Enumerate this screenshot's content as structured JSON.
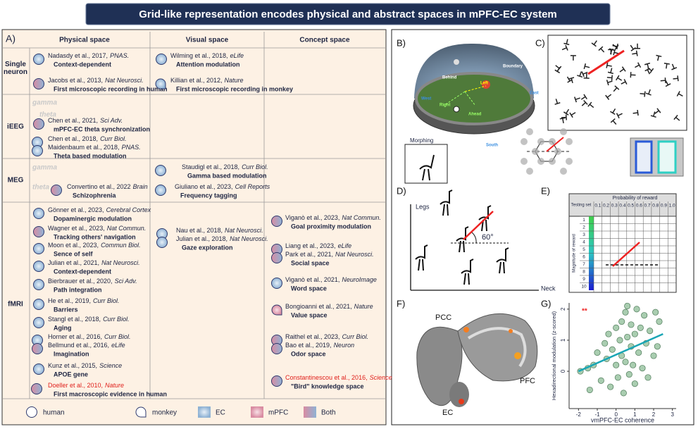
{
  "title": "Grid-like representation encodes physical and abstract spaces  in mPFC-EC system",
  "panel_a": {
    "label": "A)",
    "columns": [
      "Physical space",
      "Visual space",
      "Concept space"
    ],
    "rows": [
      "Single neuron",
      "iEEG",
      "MEG",
      "fMRI"
    ],
    "bands": [
      "gamma",
      "theta",
      "gamma",
      "theta"
    ],
    "entries": [
      {
        "cites": [
          {
            "authors": "Nadasdy et al., 2017,",
            "journal": "PNAS."
          }
        ],
        "label": "Context-dependent",
        "icons": [
          {
            "area": "EC",
            "species": "human"
          }
        ]
      },
      {
        "cites": [
          {
            "authors": "Jacobs et al., 2013,",
            "journal": "Nat Neurosci."
          }
        ],
        "label": "First microscopic recording in human",
        "icons": [
          {
            "area": "Both",
            "species": "human"
          }
        ]
      },
      {
        "cites": [
          {
            "authors": "Chen et al., 2021,",
            "journal": "Sci Adv."
          }
        ],
        "label": "mPFC-EC theta synchronization",
        "icons": [
          {
            "area": "Both",
            "species": "human"
          }
        ]
      },
      {
        "cites": [
          {
            "authors": "Chen et al., 2018,",
            "journal": "Curr Biol."
          },
          {
            "authors": "Maidenbaum et al., 2018,",
            "journal": "PNAS."
          }
        ],
        "label": "Theta based modulation",
        "icons": [
          {
            "area": "EC",
            "species": "human"
          },
          {
            "area": "EC",
            "species": "human"
          }
        ]
      },
      {
        "cites": [
          {
            "authors": "Convertino et al., 2022",
            "journal": "Brain"
          }
        ],
        "label": "Schizophrenia",
        "icons": [
          {
            "area": "Both",
            "species": "human"
          }
        ]
      },
      {
        "cites": [
          {
            "authors": "Wilming et al., 2018,",
            "journal": "eLife"
          }
        ],
        "label": "Attention modulation",
        "icons": [
          {
            "area": "EC",
            "species": "human"
          }
        ]
      },
      {
        "cites": [
          {
            "authors": "Killian et al., 2012,",
            "journal": "Nature"
          }
        ],
        "label": "First microscopic recording in monkey",
        "icons": [
          {
            "area": "EC",
            "species": "monkey"
          }
        ]
      },
      {
        "cites": [
          {
            "authors": "Staudigl et al., 2018,",
            "journal": "Curr Biol."
          }
        ],
        "label": "Gamma based modulation",
        "icons": [
          {
            "area": "EC",
            "species": "human"
          }
        ]
      },
      {
        "cites": [
          {
            "authors": "Giuliano et al., 2023,",
            "journal": "Cell Reports"
          }
        ],
        "label": "Frequency tagging",
        "icons": [
          {
            "area": "EC",
            "species": "human"
          }
        ]
      },
      {
        "cites": [
          {
            "authors": "Gönner et al., 2023,",
            "journal": "Cerebral Cortex"
          }
        ],
        "label": "Dopaminergic modulation",
        "icons": [
          {
            "area": "EC",
            "species": "human"
          }
        ]
      },
      {
        "cites": [
          {
            "authors": "Wagner et al., 2023,",
            "journal": "Nat Commun."
          }
        ],
        "label": "Tracking others' navigation",
        "icons": [
          {
            "area": "Both",
            "species": "human"
          }
        ]
      },
      {
        "cites": [
          {
            "authors": "Moon et al., 2023,",
            "journal": "Commun Biol."
          }
        ],
        "label": "Sence of self",
        "icons": [
          {
            "area": "EC",
            "species": "human"
          }
        ]
      },
      {
        "cites": [
          {
            "authors": "Julian et al., 2021,",
            "journal": "Nat Neurosci."
          }
        ],
        "label": "Context-dependent",
        "icons": [
          {
            "area": "EC",
            "species": "human"
          }
        ]
      },
      {
        "cites": [
          {
            "authors": "Bierbrauer et al., 2020,",
            "journal": "Sci Adv."
          }
        ],
        "label": "Path integration",
        "icons": [
          {
            "area": "EC",
            "species": "human"
          }
        ]
      },
      {
        "cites": [
          {
            "authors": "He et al., 2019,",
            "journal": "Curr Biol."
          }
        ],
        "label": "Barriers",
        "icons": [
          {
            "area": "EC",
            "species": "human"
          }
        ]
      },
      {
        "cites": [
          {
            "authors": "Stangl et al., 2018,",
            "journal": "Curr Biol."
          }
        ],
        "label": "Aging",
        "icons": [
          {
            "area": "EC",
            "species": "human"
          }
        ]
      },
      {
        "cites": [
          {
            "authors": "Horner et al., 2016,",
            "journal": "Curr Biol."
          },
          {
            "authors": "Bellmund et al., 2016,",
            "journal": "eLife"
          }
        ],
        "label": "Imagination",
        "icons": [
          {
            "area": "EC",
            "species": "human"
          },
          {
            "area": "Both",
            "species": "human"
          }
        ]
      },
      {
        "cites": [
          {
            "authors": "Kunz et al., 2015,",
            "journal": "Science"
          }
        ],
        "label": "APOE gene",
        "icons": [
          {
            "area": "EC",
            "species": "human"
          }
        ]
      },
      {
        "cites": [
          {
            "authors": "Doeller et al., 2010,",
            "journal": "Nature"
          }
        ],
        "label": "First macroscopic evidence in human",
        "icons": [
          {
            "area": "Both",
            "species": "human"
          }
        ],
        "color": "#e0201b"
      },
      {
        "cites": [
          {
            "authors": "Nau et al., 2018,",
            "journal": "Nat Neurosci."
          },
          {
            "authors": "Julian et al., 2018,",
            "journal": "Nat Neurosci."
          }
        ],
        "label": "Gaze exploration",
        "icons": [
          {
            "area": "EC",
            "species": "human"
          },
          {
            "area": "EC",
            "species": "human"
          }
        ]
      },
      {
        "cites": [
          {
            "authors": "Viganò et al., 2023,",
            "journal": "Nat Commun."
          }
        ],
        "label": "Goal proximity modulation",
        "icons": [
          {
            "area": "Both",
            "species": "human"
          }
        ]
      },
      {
        "cites": [
          {
            "authors": "Liang et al., 2023,",
            "journal": "eLife"
          },
          {
            "authors": "Park et al., 2021,",
            "journal": "Nat Neurosci."
          }
        ],
        "label": "Social space",
        "icons": [
          {
            "area": "Both",
            "species": "human"
          },
          {
            "area": "Both",
            "species": "human"
          }
        ]
      },
      {
        "cites": [
          {
            "authors": "Viganò et al., 2021,",
            "journal": "NeuroImage"
          }
        ],
        "label": "Word space",
        "icons": [
          {
            "area": "EC",
            "species": "human"
          }
        ]
      },
      {
        "cites": [
          {
            "authors": "Bongioanni et al., 2021,",
            "journal": "Nature"
          }
        ],
        "label": "Value space",
        "icons": [
          {
            "area": "mPFC",
            "species": "monkey"
          }
        ]
      },
      {
        "cites": [
          {
            "authors": "Raithel et al., 2023,",
            "journal": "Curr Biol."
          },
          {
            "authors": "Bao et al., 2019,",
            "journal": "Neuron"
          }
        ],
        "label": "Odor space",
        "icons": [
          {
            "area": "Both",
            "species": "human"
          },
          {
            "area": "Both",
            "species": "human"
          }
        ]
      },
      {
        "cites": [
          {
            "authors": "Constantinescou et al., 2016,",
            "journal": "Science"
          }
        ],
        "label": "\"Bird\"  knowledge space",
        "icons": [
          {
            "area": "Both",
            "species": "human"
          }
        ],
        "color": "#e0201b"
      }
    ],
    "legend": [
      {
        "label": "human",
        "area": "none",
        "species": "human"
      },
      {
        "label": "monkey",
        "area": "none",
        "species": "monkey"
      },
      {
        "label": "EC",
        "area": "EC",
        "species": "square"
      },
      {
        "label": "mPFC",
        "area": "mPFC",
        "species": "square"
      },
      {
        "label": "Both",
        "area": "Both",
        "species": "square"
      }
    ]
  },
  "panel_b": {
    "label": "B)",
    "labels": [
      "Behind",
      "Left",
      "Right",
      "Ahead",
      "Boundary",
      "West",
      "East",
      "South"
    ],
    "morphing": "Morphing"
  },
  "panel_c": {
    "label": "C)"
  },
  "panel_d": {
    "label": "D)",
    "y_label": "Legs",
    "x_label": "Neck",
    "angle": "60°"
  },
  "panel_e": {
    "label": "E)",
    "testing_set": "Testing set",
    "probability": "Probability of reward",
    "magnitude": "Magnitude of reward",
    "probabilities": [
      "0.1",
      "0.2",
      "0.3",
      "0.4",
      "0.5",
      "0.6",
      "0.7",
      "0.8",
      "0.9",
      "1.0"
    ],
    "magnitudes": [
      1,
      2,
      3,
      4,
      5,
      6,
      7,
      8,
      9,
      10
    ]
  },
  "panel_f": {
    "label": "F)",
    "regions": [
      "PCC",
      "PFC",
      "EC"
    ]
  },
  "panel_g": {
    "label": "G)",
    "type": "scatter",
    "significance": "**",
    "x_label": "vmPFC-EC coherence",
    "y_label": "Hexadirectional modulation (z-scored)",
    "xlim": [
      -2.5,
      3.2
    ],
    "ylim": [
      -1.2,
      2.2
    ],
    "xticks": [
      -2,
      -1,
      0,
      1,
      2,
      3
    ],
    "yticks": [
      0,
      1,
      2
    ],
    "point_color": "#a9cdb0",
    "x": [
      -1.9,
      -1.5,
      -1.2,
      -1,
      -0.8,
      -0.6,
      -0.5,
      -0.4,
      -0.3,
      -0.2,
      0,
      0,
      0.1,
      0.2,
      0.3,
      0.3,
      0.4,
      0.5,
      0.5,
      0.6,
      0.7,
      0.8,
      0.8,
      0.9,
      1,
      1,
      1.1,
      1.2,
      1.3,
      1.4,
      1.5,
      1.6,
      1.7,
      1.8,
      2,
      2.1,
      2.2,
      2.3,
      -1.4,
      0.6
    ],
    "y": [
      0,
      0.1,
      0.2,
      0.6,
      -0.3,
      0.9,
      0.4,
      1.2,
      -0.5,
      0.7,
      1.4,
      0.2,
      -0.2,
      1,
      1.6,
      0.5,
      -0.7,
      1.9,
      0.3,
      1.1,
      -0.1,
      0.8,
      1.5,
      0.2,
      1.2,
      -0.4,
      2,
      0.6,
      1.4,
      0.1,
      1.8,
      0.9,
      -0.2,
      1.3,
      0.5,
      1.9,
      0.8,
      1.6,
      -0.6,
      2.1
    ],
    "fit": {
      "color": "#1aa6b5",
      "x": [
        -2,
        2.5
      ],
      "y": [
        0,
        1.2
      ]
    }
  }
}
